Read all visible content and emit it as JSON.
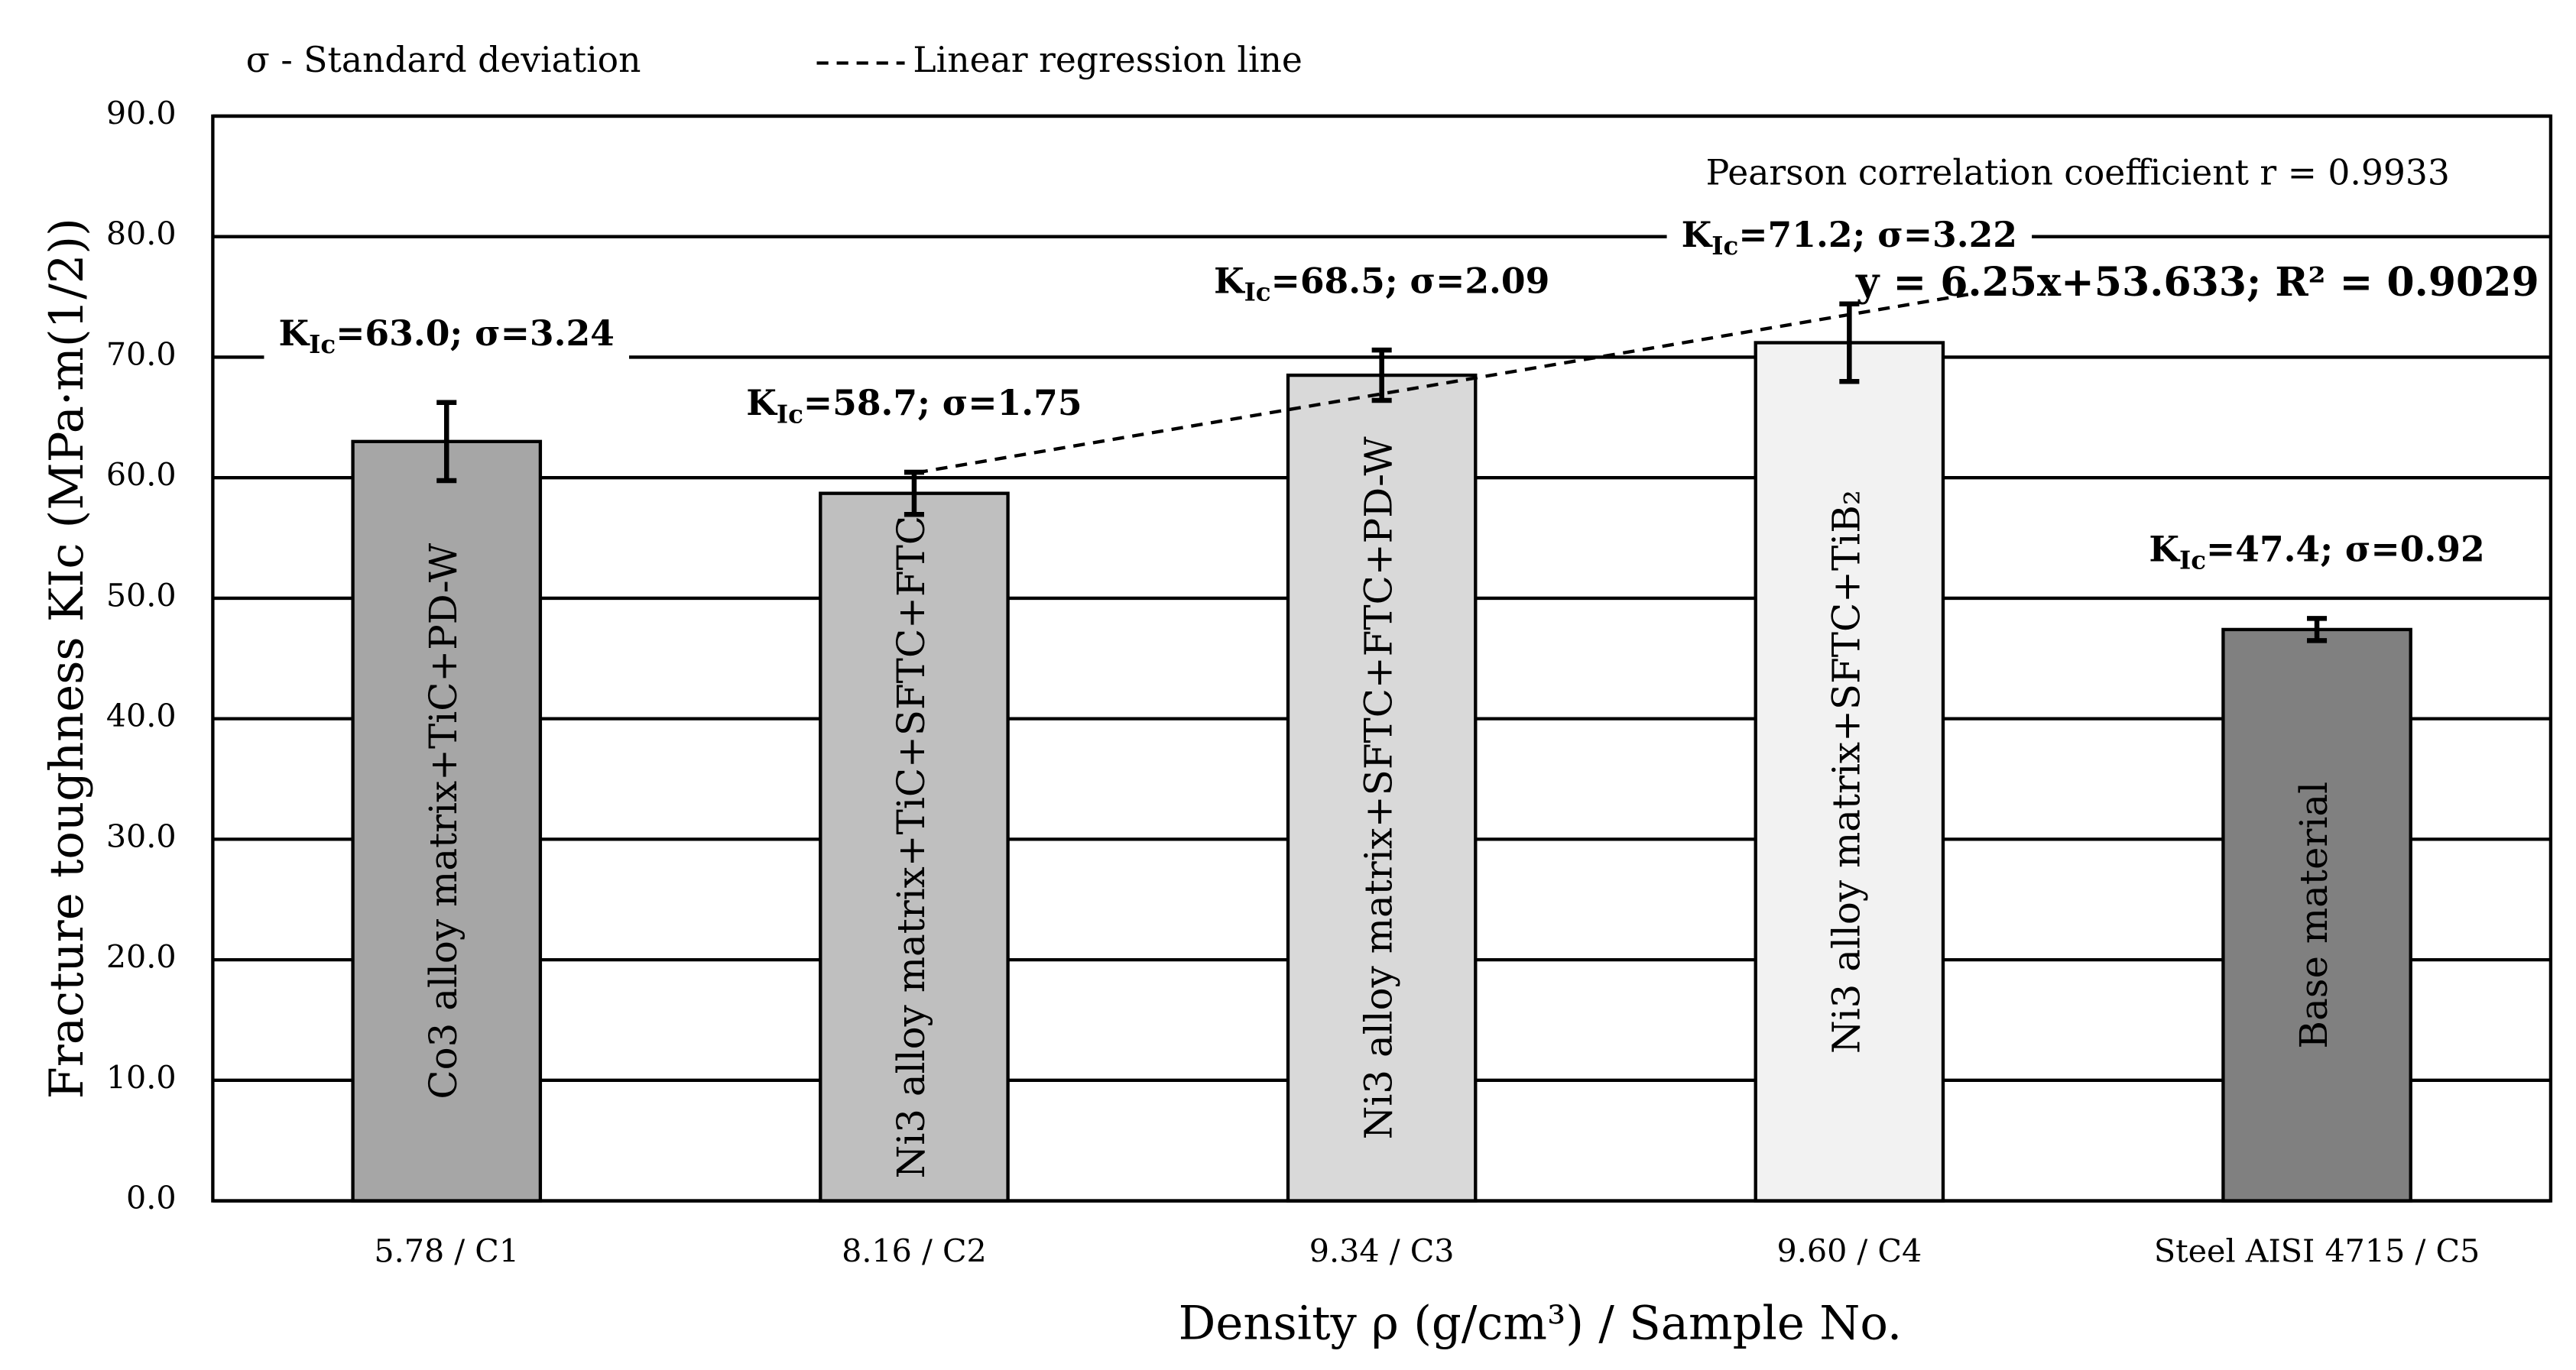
{
  "chart_data": {
    "type": "bar",
    "legend": [
      "σ - Standard deviation",
      "Linear regression line"
    ],
    "annotations": [
      "Pearson correlation coefficient r = 0.9933",
      "y = 6.25x+53.633; R² = 0.9029"
    ],
    "x_label": "Density ρ (g/cm³) / Sample No.",
    "y_label": "Fracture toughness KIc (MPa·m(1/2))",
    "categories": [
      "5.78 / C1",
      "8.16 / C2",
      "9.34 / C3",
      "9.60 / C4",
      "Steel AISI 4715 / C5"
    ],
    "bar_names": [
      "Co3 alloy matrix+TiC+PD-W",
      "Ni3 alloy matrix+TiC+SFTC+FTC",
      "Ni3 alloy matrix+SFTC+FTC+PD-W",
      "Ni3 alloy matrix+SFTC+TiB₂",
      "Base material"
    ],
    "values": [
      63.0,
      58.7,
      68.5,
      71.2,
      47.4
    ],
    "errors": [
      3.24,
      1.75,
      2.09,
      3.22,
      0.92
    ],
    "value_labels": [
      "KIc=63.0; σ=3.24",
      "KIc=58.7; σ=1.75",
      "KIc=68.5; σ=2.09",
      "KIc=71.2; σ=3.22",
      "KIc=47.4; σ=0.92"
    ],
    "colors": [
      "#a6a6a6",
      "#bfbfbf",
      "#d9d9d9",
      "#f2f2f2",
      "#808080"
    ],
    "ylim": [
      0,
      90
    ],
    "yticks": [
      {
        "value": 0,
        "label": "0.0"
      },
      {
        "value": 10,
        "label": "10.0"
      },
      {
        "value": 20,
        "label": "20.0"
      },
      {
        "value": 30,
        "label": "30.0"
      },
      {
        "value": 40,
        "label": "40.0"
      },
      {
        "value": 50,
        "label": "50.0"
      },
      {
        "value": 60,
        "label": "60.0"
      },
      {
        "value": 70,
        "label": "70.0"
      },
      {
        "value": 80,
        "label": "80.0"
      },
      {
        "value": 90,
        "label": "90.0"
      }
    ],
    "grid": true
  }
}
